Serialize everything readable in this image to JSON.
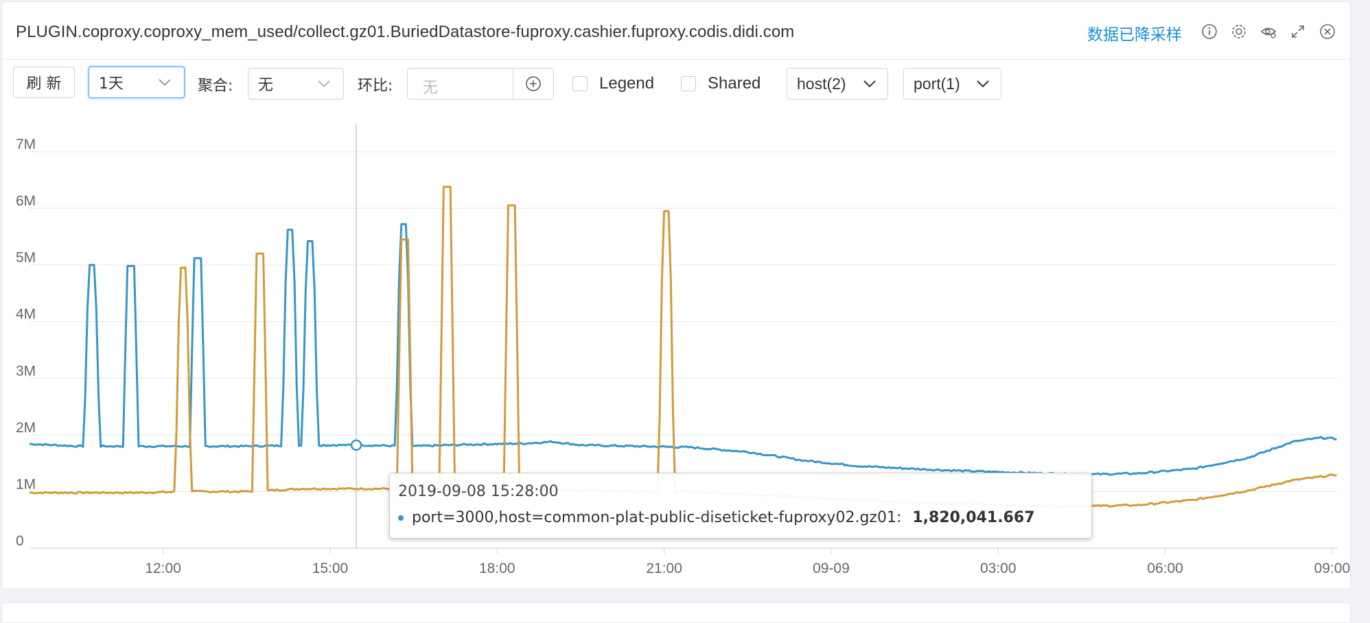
{
  "header": {
    "title": "PLUGIN.coproxy.coproxy_mem_used/collect.gz01.BuriedDatastore-fuproxy.cashier.fuproxy.codis.didi.com",
    "downsample_label": "数据已降采样",
    "icons": [
      "info-icon",
      "gear-icon",
      "eye-settings-icon",
      "expand-icon",
      "close-icon"
    ]
  },
  "toolbar": {
    "refresh_label": "刷 新",
    "range_value": "1天",
    "aggregate_label": "聚合:",
    "aggregate_value": "无",
    "compare_label": "环比:",
    "compare_placeholder": "无",
    "legend_label": "Legend",
    "shared_label": "Shared",
    "host_filter": "host(2)",
    "port_filter": "port(1)"
  },
  "colors": {
    "blue": "#3496c9",
    "orange": "#d39a37",
    "grid": "#e6e6e6",
    "axis": "#666666"
  },
  "tooltip": {
    "time": "2019-09-08 15:28:00",
    "series_label": "port=3000,host=common-plat-public-diseticket-fuproxy02.gz01:",
    "value": "1,820,041.667"
  },
  "chart_data": {
    "type": "line",
    "title": "",
    "xlabel": "",
    "ylabel": "",
    "ylim": [
      0,
      7000000
    ],
    "y_ticks": [
      "0",
      "1M",
      "2M",
      "3M",
      "4M",
      "5M",
      "6M",
      "7M"
    ],
    "x_range_hours": [
      9.6,
      33.1
    ],
    "x_ticks": [
      {
        "label": "12:00",
        "hour": 12
      },
      {
        "label": "15:00",
        "hour": 15
      },
      {
        "label": "18:00",
        "hour": 18
      },
      {
        "label": "21:00",
        "hour": 21
      },
      {
        "label": "09-09",
        "hour": 24
      },
      {
        "label": "03:00",
        "hour": 27
      },
      {
        "label": "06:00",
        "hour": 30
      },
      {
        "label": "09:00",
        "hour": 33
      }
    ],
    "crosshair_hour": 15.47,
    "grid": true,
    "legend": "hidden",
    "series": [
      {
        "color": "#3496c9",
        "base": [
          [
            9.6,
            1.84
          ],
          [
            10.5,
            1.8
          ],
          [
            11.5,
            1.8
          ],
          [
            12.5,
            1.8
          ],
          [
            13.5,
            1.8
          ],
          [
            14.5,
            1.82
          ],
          [
            15.5,
            1.82
          ],
          [
            16.5,
            1.8
          ],
          [
            17.5,
            1.83
          ],
          [
            18.5,
            1.85
          ],
          [
            19,
            1.88
          ],
          [
            19.5,
            1.82
          ],
          [
            20.5,
            1.8
          ],
          [
            21.5,
            1.78
          ],
          [
            22.5,
            1.7
          ],
          [
            23.5,
            1.55
          ],
          [
            24.5,
            1.45
          ],
          [
            25.5,
            1.4
          ],
          [
            26.5,
            1.36
          ],
          [
            27.5,
            1.33
          ],
          [
            28.5,
            1.3
          ],
          [
            29.5,
            1.32
          ],
          [
            30.5,
            1.4
          ],
          [
            31.5,
            1.6
          ],
          [
            32.3,
            1.88
          ],
          [
            32.8,
            1.95
          ],
          [
            33.1,
            1.93
          ]
        ],
        "spikes": [
          [
            10.72,
            5.0
          ],
          [
            11.42,
            4.98
          ],
          [
            12.62,
            5.12
          ],
          [
            14.28,
            5.62
          ],
          [
            14.64,
            5.42
          ],
          [
            16.32,
            5.72
          ]
        ]
      },
      {
        "color": "#d39a37",
        "base": [
          [
            9.6,
            0.98
          ],
          [
            10.5,
            0.98
          ],
          [
            11.5,
            0.98
          ],
          [
            12.5,
            1.0
          ],
          [
            13.5,
            1.0
          ],
          [
            14.5,
            1.05
          ],
          [
            15.5,
            1.05
          ],
          [
            16.5,
            1.05
          ],
          [
            17.5,
            1.05
          ],
          [
            18.5,
            1.05
          ],
          [
            19.5,
            1.02
          ],
          [
            20.5,
            1.0
          ],
          [
            21.5,
            1.0
          ],
          [
            22.5,
            0.95
          ],
          [
            23.5,
            0.9
          ],
          [
            24.5,
            0.85
          ],
          [
            25.5,
            0.8
          ],
          [
            26.5,
            0.78
          ],
          [
            27.5,
            0.75
          ],
          [
            28.5,
            0.74
          ],
          [
            29.5,
            0.76
          ],
          [
            30.5,
            0.85
          ],
          [
            31.5,
            1.02
          ],
          [
            32.3,
            1.2
          ],
          [
            33.1,
            1.3
          ]
        ],
        "spikes": [
          [
            12.36,
            4.95
          ],
          [
            13.74,
            5.2
          ],
          [
            16.34,
            5.45
          ],
          [
            17.1,
            6.38
          ],
          [
            18.26,
            6.05
          ],
          [
            21.04,
            5.95
          ]
        ]
      }
    ]
  }
}
